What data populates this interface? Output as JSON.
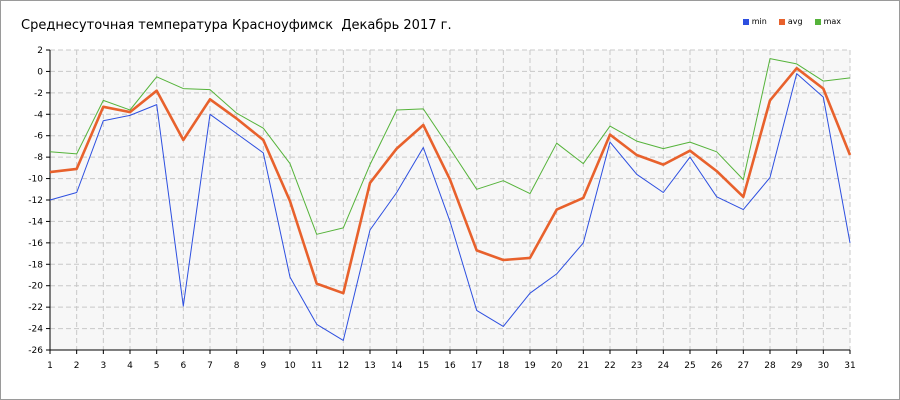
{
  "chart_data": {
    "type": "line",
    "title": "Среднесуточная температура Красноуфимск  Декабрь 2017 г.",
    "xlabel": "",
    "ylabel": "",
    "x": [
      1,
      2,
      3,
      4,
      5,
      6,
      7,
      8,
      9,
      10,
      11,
      12,
      13,
      14,
      15,
      16,
      17,
      18,
      19,
      20,
      21,
      22,
      23,
      24,
      25,
      26,
      27,
      28,
      29,
      30,
      31
    ],
    "ylim": [
      -26,
      2
    ],
    "yticks": [
      2,
      0,
      -2,
      -4,
      -6,
      -8,
      -10,
      -12,
      -14,
      -16,
      -18,
      -20,
      -22,
      -24,
      -26
    ],
    "grid": true,
    "legend_position": "top-right",
    "series": [
      {
        "name": "min",
        "color": "#2d4fe0",
        "width": 1,
        "values": [
          -12,
          -11.3,
          -4.6,
          -4.1,
          -3.1,
          -21.9,
          -4,
          -5.8,
          -7.6,
          -19.2,
          -23.6,
          -25.1,
          -14.8,
          -11.3,
          -7.1,
          -14,
          -22.3,
          -23.8,
          -20.7,
          -18.9,
          -16,
          -6.6,
          -9.6,
          -11.3,
          -8,
          -11.7,
          -12.9,
          -9.9,
          -0.2,
          -2.4,
          -16
        ]
      },
      {
        "name": "avg",
        "color": "#e8612c",
        "width": 2.6,
        "values": [
          -9.4,
          -9.1,
          -3.3,
          -3.8,
          -1.8,
          -6.4,
          -2.6,
          -4.4,
          -6.4,
          -12.1,
          -19.8,
          -20.7,
          -10.4,
          -7.2,
          -5,
          -10.1,
          -16.7,
          -17.6,
          -17.4,
          -12.9,
          -11.8,
          -5.9,
          -7.8,
          -8.7,
          -7.4,
          -9.3,
          -11.7,
          -2.7,
          0.3,
          -1.6,
          -7.8
        ]
      },
      {
        "name": "max",
        "color": "#55b33a",
        "width": 1,
        "values": [
          -7.5,
          -7.7,
          -2.7,
          -3.6,
          -0.5,
          -1.6,
          -1.7,
          -3.9,
          -5.3,
          -8.6,
          -15.2,
          -14.6,
          -8.7,
          -3.6,
          -3.5,
          -7.2,
          -11,
          -10.2,
          -11.4,
          -6.7,
          -8.6,
          -5.1,
          -6.5,
          -7.2,
          -6.6,
          -7.5,
          -10.1,
          1.2,
          0.7,
          -0.9,
          -0.6
        ]
      }
    ]
  }
}
